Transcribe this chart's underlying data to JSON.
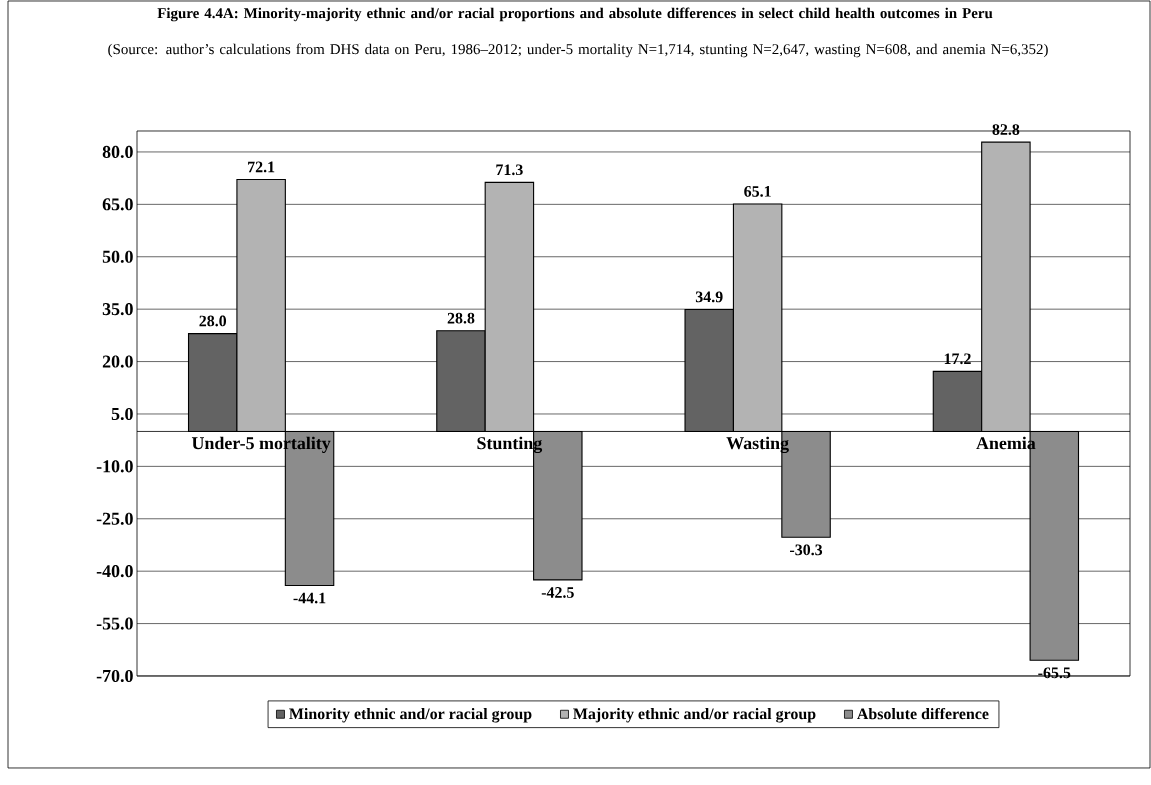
{
  "chart_data": {
    "type": "bar",
    "title": "Figure 4.4A: Minority-majority ethnic and/or racial proportions and absolute differences in select child health outcomes in Peru",
    "subtitle": "(Source: author’s calculations from DHS data on Peru, 1986–2012; under-5 mortality N=1,714, stunting N=2,647, wasting N=608, and anemia N=6,352)",
    "categories": [
      "Under-5 mortality",
      "Stunting",
      "Wasting",
      "Anemia"
    ],
    "series": [
      {
        "name": "Minority ethnic and/or racial group",
        "color": "#636363",
        "values": [
          28.0,
          28.8,
          34.9,
          17.2
        ],
        "value_labels": [
          "28.0",
          "28.8",
          "34.9",
          "17.2"
        ]
      },
      {
        "name": "Majority ethnic and/or racial group",
        "color": "#b3b3b3",
        "values": [
          72.1,
          71.3,
          65.1,
          82.8
        ],
        "value_labels": [
          "72.1",
          "71.3",
          "65.1",
          "82.8"
        ]
      },
      {
        "name": "Absolute difference",
        "color": "#8c8c8c",
        "values": [
          -44.1,
          -42.5,
          -30.3,
          -65.5
        ],
        "value_labels": [
          "-44.1",
          "-42.5",
          "-30.3",
          "-65.5"
        ]
      }
    ],
    "ylim": [
      -70,
      86
    ],
    "yticks": [
      {
        "value": -70,
        "label": "-70.0"
      },
      {
        "value": -55,
        "label": "-55.0"
      },
      {
        "value": -40,
        "label": "-40.0"
      },
      {
        "value": -25,
        "label": "-25.0"
      },
      {
        "value": -10,
        "label": "-10.0"
      },
      {
        "value": 5,
        "label": "5.0"
      },
      {
        "value": 20,
        "label": "20.0"
      },
      {
        "value": 35,
        "label": "35.0"
      },
      {
        "value": 50,
        "label": "50.0"
      },
      {
        "value": 65,
        "label": "65.0"
      },
      {
        "value": 80,
        "label": "80.0"
      }
    ],
    "grid": "y",
    "legend": "bottom"
  }
}
